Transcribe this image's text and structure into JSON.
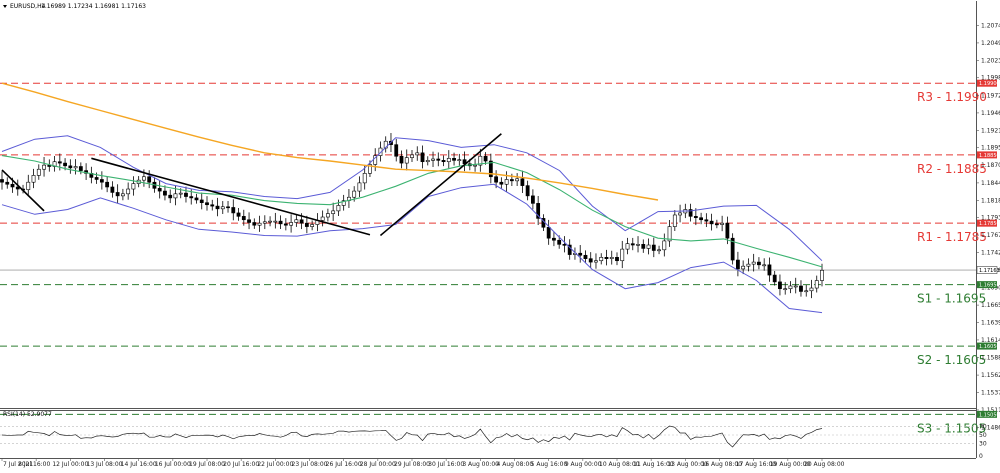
{
  "header": {
    "symbol_label": "EURUSD,H4",
    "ohlc": "1.16989 1.17234 1.16981 1.17163"
  },
  "rsi_panel": {
    "label": "RSI(14) 52.9077",
    "levels": [
      "100",
      "70",
      "50",
      "30",
      "0"
    ]
  },
  "colors": {
    "background": "#ffffff",
    "candle": "#d7d7d7",
    "bull_body": "#ffffff",
    "bear_body": "#000000",
    "resistance": "#e53935",
    "support": "#2e7d32",
    "ma_slow": "#f5a623",
    "ma_mid": "#3cb371",
    "bollinger": "#5b5bd6",
    "trendline": "#000000",
    "price_line": "#a0a0a0"
  },
  "chart_data": {
    "type": "candlestick",
    "symbol": "EURUSD",
    "timeframe": "H4",
    "ohlc_last": {
      "open": 1.16989,
      "high": 1.17234,
      "low": 1.16981,
      "close": 1.17163
    },
    "current_price": 1.17163,
    "ylim": [
      1.1444,
      1.2106
    ],
    "y_ticks": [
      "1.20745",
      "1.20490",
      "1.20235",
      "1.19980",
      "1.19720",
      "1.19465",
      "1.19210",
      "1.18955",
      "1.18700",
      "1.18440",
      "1.18185",
      "1.17930",
      "1.17675",
      "1.17420",
      "1.17163",
      "1.16905",
      "1.16650",
      "1.16395",
      "1.16140",
      "1.15885",
      "1.15625",
      "1.15370",
      "1.15115",
      "1.14860"
    ],
    "x_ticks": [
      "7 Jul 2021",
      "8 Jul 16:00",
      "12 Jul 00:00",
      "13 Jul 08:00",
      "14 Jul 16:00",
      "16 Jul 00:00",
      "19 Jul 08:00",
      "20 Jul 16:00",
      "22 Jul 00:00",
      "23 Jul 08:00",
      "26 Jul 16:00",
      "28 Jul 00:00",
      "29 Jul 08:00",
      "30 Jul 16:00",
      "3 Aug 00:00",
      "4 Aug 08:00",
      "5 Aug 16:00",
      "9 Aug 00:00",
      "10 Aug 08:00",
      "11 Aug 16:00",
      "13 Aug 00:00",
      "16 Aug 08:00",
      "17 Aug 16:00",
      "19 Aug 00:00",
      "20 Aug 08:00"
    ],
    "levels": [
      {
        "name": "R3",
        "label": "R3 - 1.1990",
        "value": 1.199,
        "tag": "1.19900",
        "kind": "resistance"
      },
      {
        "name": "R2",
        "label": "R2 - 1.1885",
        "value": 1.1885,
        "tag": "1.18850",
        "kind": "resistance"
      },
      {
        "name": "R1",
        "label": "R1 - 1.1785",
        "value": 1.1785,
        "tag": "1.17850",
        "kind": "resistance"
      },
      {
        "name": "S1",
        "label": "S1 - 1.1695",
        "value": 1.1695,
        "tag": "1.16950",
        "kind": "support"
      },
      {
        "name": "S2",
        "label": "S2 - 1.1605",
        "value": 1.1605,
        "tag": "1.16050",
        "kind": "support"
      },
      {
        "name": "S3",
        "label": "S3 - 1.1505",
        "value": 1.1505,
        "tag": "1.15050",
        "kind": "support"
      }
    ],
    "close_series": [
      1.1845,
      1.1842,
      1.1838,
      1.1835,
      1.1834,
      1.1845,
      1.1855,
      1.1864,
      1.187,
      1.1868,
      1.1875,
      1.1873,
      1.1869,
      1.1866,
      1.1868,
      1.1862,
      1.1858,
      1.1852,
      1.1849,
      1.1845,
      1.1838,
      1.183,
      1.1825,
      1.1828,
      1.1835,
      1.1843,
      1.1848,
      1.1853,
      1.1845,
      1.1836,
      1.1832,
      1.1826,
      1.1822,
      1.1828,
      1.1829,
      1.1824,
      1.1822,
      1.1819,
      1.1815,
      1.1812,
      1.181,
      1.1806,
      1.1809,
      1.1808,
      1.18,
      1.1795,
      1.179,
      1.1786,
      1.1782,
      1.1785,
      1.1787,
      1.1788,
      1.1788,
      1.1784,
      1.1782,
      1.1786,
      1.179,
      1.1785,
      1.178,
      1.1783,
      1.1789,
      1.1794,
      1.1799,
      1.1803,
      1.1811,
      1.1818,
      1.1823,
      1.1832,
      1.1844,
      1.1858,
      1.1871,
      1.1884,
      1.1895,
      1.1905,
      1.19,
      1.1883,
      1.1873,
      1.1881,
      1.1885,
      1.1888,
      1.1875,
      1.1877,
      1.1879,
      1.1877,
      1.1875,
      1.188,
      1.1877,
      1.1878,
      1.1872,
      1.1869,
      1.187,
      1.1883,
      1.1876,
      1.1853,
      1.1845,
      1.1842,
      1.1849,
      1.1847,
      1.185,
      1.184,
      1.1825,
      1.1814,
      1.1792,
      1.1779,
      1.1763,
      1.176,
      1.1754,
      1.1753,
      1.1739,
      1.1741,
      1.1738,
      1.1733,
      1.1728,
      1.173,
      1.1735,
      1.1733,
      1.1735,
      1.173,
      1.1747,
      1.1755,
      1.1753,
      1.1754,
      1.1748,
      1.1753,
      1.1745,
      1.1746,
      1.1759,
      1.178,
      1.1797,
      1.18,
      1.1805,
      1.1795,
      1.1793,
      1.179,
      1.1788,
      1.1784,
      1.1783,
      1.1785,
      1.1763,
      1.1731,
      1.1718,
      1.1722,
      1.1725,
      1.1728,
      1.1724,
      1.1724,
      1.1709,
      1.1699,
      1.1689,
      1.1689,
      1.1693,
      1.1693,
      1.1685,
      1.1686,
      1.169,
      1.1701,
      1.1716
    ],
    "ma_slow": [
      [
        0,
        1.199
      ],
      [
        1,
        1.1977
      ],
      [
        2,
        1.1963
      ],
      [
        3,
        1.195
      ],
      [
        4,
        1.1937
      ],
      [
        5,
        1.1924
      ],
      [
        6,
        1.1911
      ],
      [
        7,
        1.1899
      ],
      [
        8,
        1.1888
      ],
      [
        9,
        1.1881
      ],
      [
        10,
        1.1876
      ],
      [
        11,
        1.187
      ],
      [
        12,
        1.1864
      ],
      [
        13,
        1.1862
      ],
      [
        14,
        1.186
      ],
      [
        15,
        1.1857
      ],
      [
        16,
        1.1851
      ],
      [
        17,
        1.1844
      ],
      [
        18,
        1.1836
      ],
      [
        19,
        1.1827
      ],
      [
        20,
        1.1819
      ]
    ],
    "ma_mid": [
      [
        0,
        1.1884
      ],
      [
        1,
        1.1876
      ],
      [
        2,
        1.1864
      ],
      [
        3,
        1.1855
      ],
      [
        4,
        1.1847
      ],
      [
        5,
        1.1838
      ],
      [
        6,
        1.1829
      ],
      [
        7,
        1.1826
      ],
      [
        8,
        1.1818
      ],
      [
        9,
        1.1814
      ],
      [
        10,
        1.1812
      ],
      [
        11,
        1.1823
      ],
      [
        12,
        1.1839
      ],
      [
        13,
        1.1858
      ],
      [
        14,
        1.1869
      ],
      [
        15,
        1.1874
      ],
      [
        16,
        1.1859
      ],
      [
        17,
        1.1834
      ],
      [
        18,
        1.1804
      ],
      [
        19,
        1.178
      ],
      [
        20,
        1.1763
      ],
      [
        21,
        1.1759
      ],
      [
        22,
        1.1762
      ],
      [
        23,
        1.1748
      ],
      [
        24,
        1.1735
      ],
      [
        25,
        1.1721
      ]
    ],
    "boll_upper": [
      [
        0,
        1.189
      ],
      [
        1,
        1.1908
      ],
      [
        2,
        1.1913
      ],
      [
        3,
        1.1896
      ],
      [
        4,
        1.1867
      ],
      [
        5,
        1.1843
      ],
      [
        6,
        1.1833
      ],
      [
        7,
        1.1831
      ],
      [
        8,
        1.1824
      ],
      [
        9,
        1.1821
      ],
      [
        10,
        1.183
      ],
      [
        11,
        1.1863
      ],
      [
        12,
        1.191
      ],
      [
        13,
        1.1906
      ],
      [
        14,
        1.1896
      ],
      [
        15,
        1.19
      ],
      [
        16,
        1.1888
      ],
      [
        17,
        1.1862
      ],
      [
        18,
        1.181
      ],
      [
        19,
        1.1774
      ],
      [
        20,
        1.1802
      ],
      [
        21,
        1.1803
      ],
      [
        22,
        1.181
      ],
      [
        23,
        1.1811
      ],
      [
        24,
        1.1776
      ],
      [
        25,
        1.173
      ]
    ],
    "boll_lower": [
      [
        0,
        1.1812
      ],
      [
        1,
        1.1798
      ],
      [
        2,
        1.1805
      ],
      [
        3,
        1.1822
      ],
      [
        4,
        1.1807
      ],
      [
        5,
        1.179
      ],
      [
        6,
        1.1776
      ],
      [
        7,
        1.1772
      ],
      [
        8,
        1.1767
      ],
      [
        9,
        1.1766
      ],
      [
        10,
        1.1774
      ],
      [
        11,
        1.1777
      ],
      [
        12,
        1.1783
      ],
      [
        13,
        1.1824
      ],
      [
        14,
        1.1837
      ],
      [
        15,
        1.1842
      ],
      [
        16,
        1.1813
      ],
      [
        17,
        1.1764
      ],
      [
        18,
        1.1717
      ],
      [
        19,
        1.1689
      ],
      [
        20,
        1.1698
      ],
      [
        21,
        1.172
      ],
      [
        22,
        1.1728
      ],
      [
        23,
        1.1701
      ],
      [
        24,
        1.166
      ],
      [
        25,
        1.1654
      ]
    ],
    "trendlines": [
      [
        1.1863,
        1.1803
      ],
      [
        1.188,
        1.1768
      ],
      [
        1.1767,
        1.1916
      ]
    ],
    "rsi": {
      "name": "RSI(14)",
      "value": 52.9077,
      "levels": [
        100,
        70,
        50,
        30,
        0
      ]
    }
  }
}
